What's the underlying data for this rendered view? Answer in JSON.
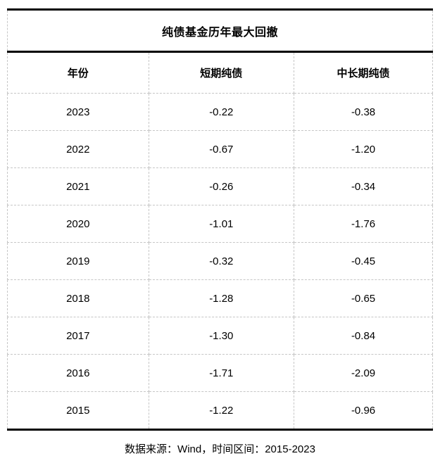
{
  "chart_data": {
    "type": "table",
    "title": "纯债基金历年最大回撤",
    "columns": [
      "年份",
      "短期纯债",
      "中长期纯债"
    ],
    "rows": [
      [
        "2023",
        "-0.22",
        "-0.38"
      ],
      [
        "2022",
        "-0.67",
        "-1.20"
      ],
      [
        "2021",
        "-0.26",
        "-0.34"
      ],
      [
        "2020",
        "-1.01",
        "-1.76"
      ],
      [
        "2019",
        "-0.32",
        "-0.45"
      ],
      [
        "2018",
        "-1.28",
        "-0.65"
      ],
      [
        "2017",
        "-1.30",
        "-0.84"
      ],
      [
        "2016",
        "-1.71",
        "-2.09"
      ],
      [
        "2015",
        "-1.22",
        "-0.96"
      ]
    ],
    "source_note": "数据来源：Wind，时间区间：2015-2023"
  },
  "colors": {
    "strong_border": "#000000",
    "dashed_border": "#c6c6c6",
    "text": "#000000",
    "background": "#ffffff"
  }
}
